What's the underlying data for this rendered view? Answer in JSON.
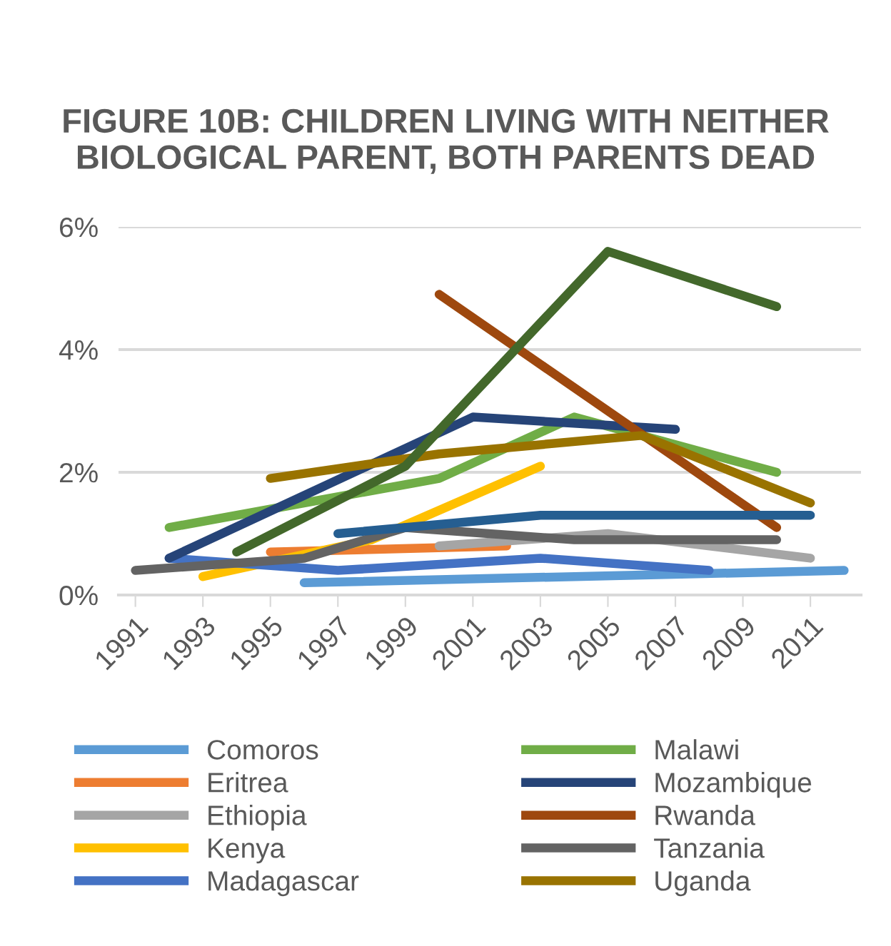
{
  "chart_data": {
    "type": "line",
    "title": "FIGURE 10B: CHILDREN LIVING WITH NEITHER BIOLOGICAL PARENT, BOTH PARENTS DEAD",
    "xlim": [
      1990.5,
      2012.5
    ],
    "xticks": [
      1991,
      1993,
      1995,
      1997,
      1999,
      2001,
      2003,
      2005,
      2007,
      2009,
      2011
    ],
    "ylim": [
      0,
      6
    ],
    "yticks": [
      {
        "value": 0,
        "label": "0%"
      },
      {
        "value": 2,
        "label": "2%"
      },
      {
        "value": 4,
        "label": "4%"
      },
      {
        "value": 6,
        "label": "6%"
      }
    ],
    "grid": "y",
    "legend": "bottom",
    "marker": "none",
    "line_style": "solid",
    "series": [
      {
        "name": "Comoros",
        "color": "#5b9bd5",
        "x": [
          1996,
          2012
        ],
        "values": [
          0.2,
          0.4
        ]
      },
      {
        "name": "Eritrea",
        "color": "#ed7d31",
        "x": [
          1995,
          2002
        ],
        "values": [
          0.7,
          0.8
        ]
      },
      {
        "name": "Ethiopia",
        "color": "#a5a5a5",
        "x": [
          2000,
          2005,
          2011
        ],
        "values": [
          0.8,
          1.0,
          0.6
        ]
      },
      {
        "name": "Kenya",
        "color": "#ffc000",
        "x": [
          1993,
          1998,
          2003
        ],
        "values": [
          0.3,
          0.9,
          2.1
        ]
      },
      {
        "name": "Madagascar",
        "color": "#4472c4",
        "x": [
          1992,
          1997,
          2003,
          2008
        ],
        "values": [
          0.6,
          0.4,
          0.6,
          0.4
        ]
      },
      {
        "name": "Malawi",
        "color": "#70ad47",
        "x": [
          1992,
          2000,
          2004,
          2010
        ],
        "values": [
          1.1,
          1.9,
          2.9,
          2.0
        ]
      },
      {
        "name": "Mozambique",
        "color": "#264478",
        "x": [
          1992,
          2001,
          2007
        ],
        "values": [
          0.6,
          2.9,
          2.7
        ]
      },
      {
        "name": "Rwanda",
        "color": "#9e480e",
        "x": [
          2000,
          2010
        ],
        "values": [
          4.9,
          1.1
        ]
      },
      {
        "name": "Tanzania",
        "color": "#636363",
        "x": [
          1991,
          1996,
          1999,
          2004,
          2010
        ],
        "values": [
          0.4,
          0.6,
          1.1,
          0.9,
          0.9
        ]
      },
      {
        "name": "Uganda",
        "color": "#997300",
        "x": [
          1995,
          2000,
          2006,
          2011
        ],
        "values": [
          1.9,
          2.3,
          2.6,
          1.5
        ]
      },
      {
        "color": "#255e91",
        "x": [
          1997,
          2003,
          2011
        ],
        "values": [
          1.0,
          1.3,
          1.3
        ]
      },
      {
        "color": "#43682b",
        "x": [
          1994,
          1999,
          2005,
          2010
        ],
        "values": [
          0.7,
          2.1,
          5.6,
          4.7
        ]
      }
    ]
  }
}
